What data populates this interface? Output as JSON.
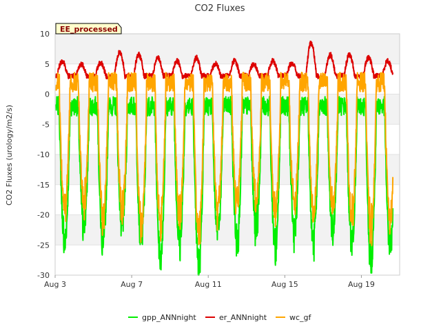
{
  "chart_data": {
    "type": "line",
    "title": "CO2 Fluxes",
    "ylabel": "CO2 Fluxes (urology/m2/s)",
    "xlabel": "",
    "badge": "EE_processed",
    "ylim": [
      -30,
      10
    ],
    "xlim": [
      0,
      18.0
    ],
    "y_ticks": [
      10,
      5,
      0,
      -5,
      -10,
      -15,
      -20,
      -25,
      -30
    ],
    "x_ticks": [
      {
        "value": 0,
        "label": "Aug 3"
      },
      {
        "value": 4,
        "label": "Aug 7"
      },
      {
        "value": 8,
        "label": "Aug 11"
      },
      {
        "value": 12,
        "label": "Aug 15"
      },
      {
        "value": 16,
        "label": "Aug 19"
      }
    ],
    "grid": true,
    "legend_position": "bottom",
    "days": 17,
    "series": [
      {
        "name": "gpp_ANNnight",
        "color": "#00ee00",
        "night_value": -2.0,
        "daily_min": [
          -24.5,
          -22.0,
          -25.0,
          -21.5,
          -24.0,
          -27.0,
          -24.5,
          -28.0,
          -23.0,
          -24.0,
          -22.0,
          -25.0,
          -23.0,
          -24.5,
          -22.5,
          -24.5,
          -27.0,
          -25.5
        ]
      },
      {
        "name": "er_ANNnight",
        "color": "#dd0000",
        "night_value": 3.0,
        "daily_peak": [
          5.5,
          5.0,
          5.2,
          7.0,
          6.5,
          6.0,
          5.5,
          6.0,
          5.0,
          5.5,
          5.0,
          5.5,
          5.2,
          8.5,
          6.5,
          6.5,
          6.0,
          5.5
        ]
      },
      {
        "name": "wc_gf",
        "color": "#ffa500",
        "night_value": 2.0,
        "daily_min": [
          -19.0,
          -18.0,
          -20.0,
          -19.0,
          -22.0,
          -21.0,
          -20.0,
          -23.0,
          -19.0,
          -18.0,
          -17.5,
          -20.0,
          -18.0,
          -19.5,
          -19.0,
          -20.0,
          -22.0,
          -21.0
        ]
      }
    ]
  }
}
